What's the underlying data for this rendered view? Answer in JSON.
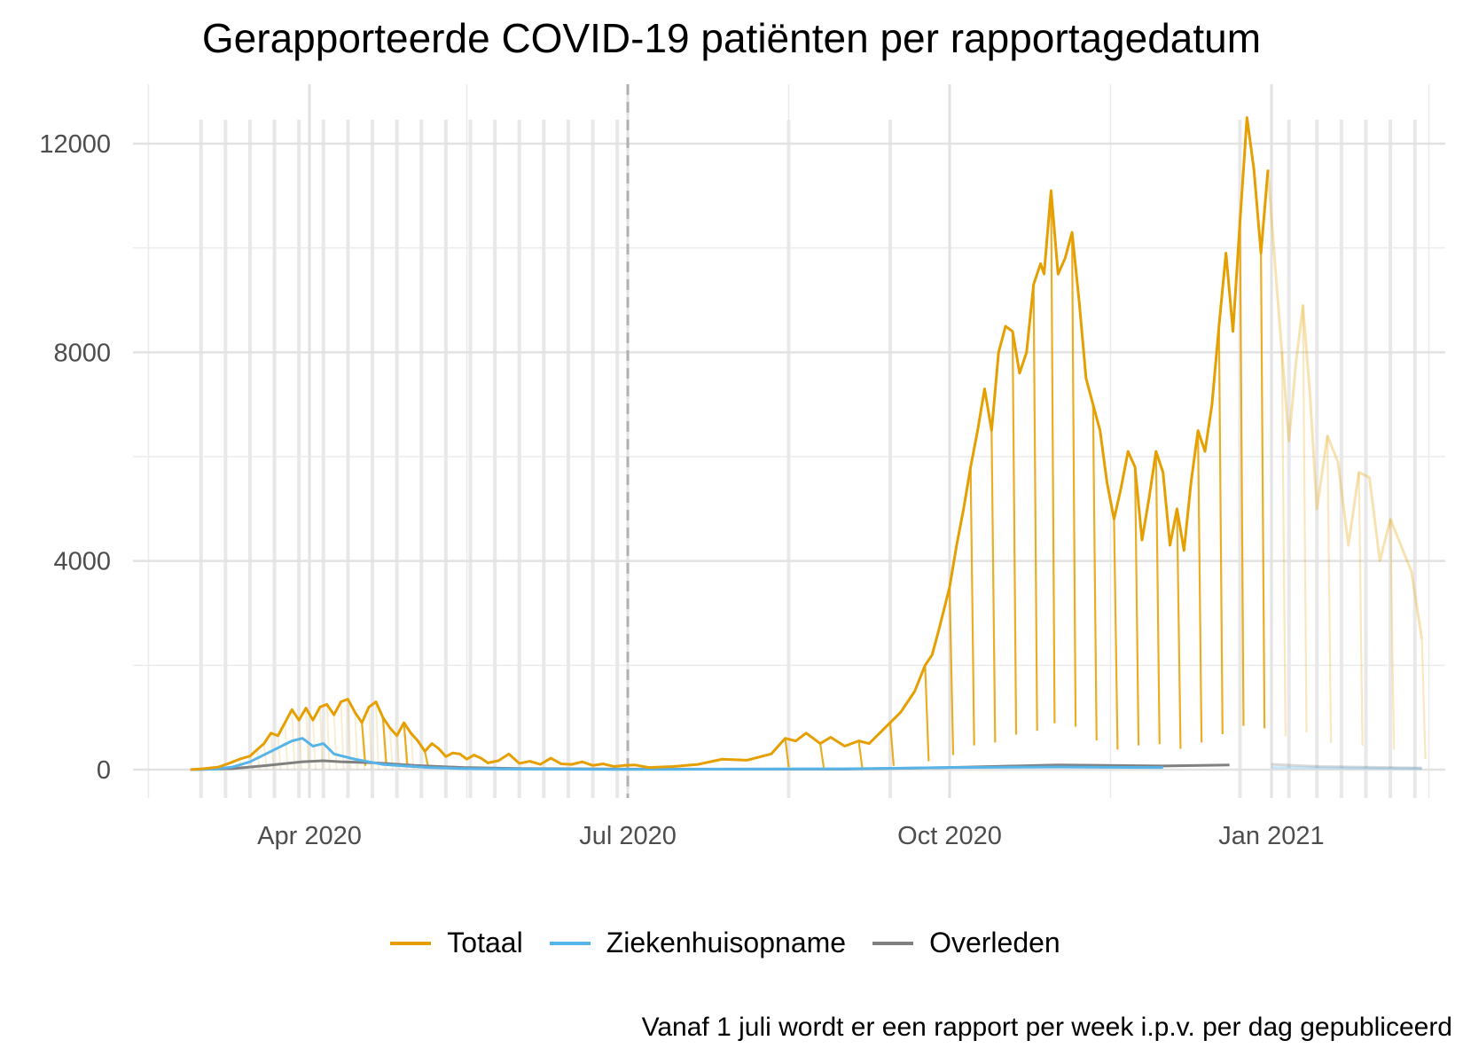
{
  "chart_data": {
    "type": "line",
    "title": "Gerapporteerde COVID-19 patiënten per rapportagedatum",
    "xlabel": "",
    "ylabel": "",
    "caption": "Vanaf 1 juli wordt er een rapport per week i.p.v. per dag gepubliceerd",
    "x_range": [
      "2020-02-14",
      "2021-02-22"
    ],
    "ylim": [
      -1000,
      13000
    ],
    "x_ticks": [
      {
        "date": "2020-04-01",
        "label": "Apr 2020"
      },
      {
        "date": "2020-07-01",
        "label": "Jul 2020"
      },
      {
        "date": "2020-10-01",
        "label": "Oct 2020"
      },
      {
        "date": "2021-01-01",
        "label": "Jan 2021"
      }
    ],
    "y_ticks": [
      {
        "value": 0,
        "label": "0"
      },
      {
        "value": 4000,
        "label": "4000"
      },
      {
        "value": 8000,
        "label": "8000"
      },
      {
        "value": 12000,
        "label": "12000"
      }
    ],
    "grid": true,
    "legend_position": "bottom",
    "vline": {
      "date": "2020-07-01",
      "style": "dashed",
      "color": "#b0b0b0"
    },
    "weekly_gridlines": [
      "2020-03-01",
      "2020-03-08",
      "2020-03-15",
      "2020-03-22",
      "2020-03-29",
      "2020-04-05",
      "2020-04-12",
      "2020-04-19",
      "2020-04-26",
      "2020-05-03",
      "2020-05-10",
      "2020-05-17",
      "2020-05-24",
      "2020-05-31",
      "2020-06-07",
      "2020-06-14",
      "2020-06-21",
      "2020-06-28",
      "2020-08-16",
      "2020-09-14",
      "2020-12-23",
      "2021-01-06",
      "2021-01-14",
      "2021-01-21",
      "2021-01-28",
      "2021-02-04",
      "2021-02-11"
    ],
    "series": [
      {
        "name": "Totaal",
        "color": "#E69F00",
        "points": [
          [
            "2020-02-27",
            0
          ],
          [
            "2020-03-02",
            20
          ],
          [
            "2020-03-06",
            50
          ],
          [
            "2020-03-09",
            120
          ],
          [
            "2020-03-12",
            200
          ],
          [
            "2020-03-15",
            260
          ],
          [
            "2020-03-17",
            380
          ],
          [
            "2020-03-19",
            500
          ],
          [
            "2020-03-21",
            700
          ],
          [
            "2020-03-23",
            650
          ],
          [
            "2020-03-25",
            900
          ],
          [
            "2020-03-27",
            1150
          ],
          [
            "2020-03-29",
            950
          ],
          [
            "2020-03-31",
            1180
          ],
          [
            "2020-04-02",
            950
          ],
          [
            "2020-04-04",
            1200
          ],
          [
            "2020-04-06",
            1250
          ],
          [
            "2020-04-08",
            1050
          ],
          [
            "2020-04-10",
            1300
          ],
          [
            "2020-04-12",
            1350
          ],
          [
            "2020-04-14",
            1100
          ],
          [
            "2020-04-16",
            900
          ],
          [
            "2020-04-18",
            1200
          ],
          [
            "2020-04-20",
            1300
          ],
          [
            "2020-04-22",
            1000
          ],
          [
            "2020-04-24",
            800
          ],
          [
            "2020-04-26",
            650
          ],
          [
            "2020-04-28",
            900
          ],
          [
            "2020-04-30",
            700
          ],
          [
            "2020-05-02",
            550
          ],
          [
            "2020-05-04",
            350
          ],
          [
            "2020-05-06",
            500
          ],
          [
            "2020-05-08",
            400
          ],
          [
            "2020-05-10",
            250
          ],
          [
            "2020-05-12",
            320
          ],
          [
            "2020-05-14",
            300
          ],
          [
            "2020-05-16",
            200
          ],
          [
            "2020-05-18",
            280
          ],
          [
            "2020-05-20",
            220
          ],
          [
            "2020-05-22",
            130
          ],
          [
            "2020-05-25",
            170
          ],
          [
            "2020-05-28",
            300
          ],
          [
            "2020-05-31",
            120
          ],
          [
            "2020-06-03",
            160
          ],
          [
            "2020-06-06",
            100
          ],
          [
            "2020-06-09",
            220
          ],
          [
            "2020-06-12",
            110
          ],
          [
            "2020-06-15",
            100
          ],
          [
            "2020-06-18",
            150
          ],
          [
            "2020-06-21",
            80
          ],
          [
            "2020-06-24",
            110
          ],
          [
            "2020-06-27",
            60
          ],
          [
            "2020-06-30",
            80
          ],
          [
            "2020-07-03",
            90
          ],
          [
            "2020-07-07",
            40
          ],
          [
            "2020-07-14",
            60
          ],
          [
            "2020-07-21",
            100
          ],
          [
            "2020-07-28",
            200
          ],
          [
            "2020-08-04",
            180
          ],
          [
            "2020-08-11",
            300
          ],
          [
            "2020-08-15",
            600
          ],
          [
            "2020-08-18",
            550
          ],
          [
            "2020-08-21",
            700
          ],
          [
            "2020-08-25",
            500
          ],
          [
            "2020-08-28",
            620
          ],
          [
            "2020-09-01",
            450
          ],
          [
            "2020-09-05",
            550
          ],
          [
            "2020-09-08",
            500
          ],
          [
            "2020-09-11",
            700
          ],
          [
            "2020-09-14",
            900
          ],
          [
            "2020-09-17",
            1100
          ],
          [
            "2020-09-21",
            1500
          ],
          [
            "2020-09-24",
            2000
          ],
          [
            "2020-09-26",
            2200
          ],
          [
            "2020-09-28",
            2700
          ],
          [
            "2020-10-01",
            3500
          ],
          [
            "2020-10-03",
            4300
          ],
          [
            "2020-10-05",
            5000
          ],
          [
            "2020-10-07",
            5800
          ],
          [
            "2020-10-09",
            6500
          ],
          [
            "2020-10-11",
            7300
          ],
          [
            "2020-10-13",
            6500
          ],
          [
            "2020-10-15",
            8000
          ],
          [
            "2020-10-17",
            8500
          ],
          [
            "2020-10-19",
            8400
          ],
          [
            "2020-10-21",
            7600
          ],
          [
            "2020-10-23",
            8000
          ],
          [
            "2020-10-25",
            9300
          ],
          [
            "2020-10-27",
            9700
          ],
          [
            "2020-10-28",
            9500
          ],
          [
            "2020-10-30",
            11100
          ],
          [
            "2020-11-01",
            9500
          ],
          [
            "2020-11-03",
            9800
          ],
          [
            "2020-11-05",
            10300
          ],
          [
            "2020-11-07",
            9000
          ],
          [
            "2020-11-09",
            7500
          ],
          [
            "2020-11-11",
            7000
          ],
          [
            "2020-11-13",
            6500
          ],
          [
            "2020-11-15",
            5500
          ],
          [
            "2020-11-17",
            4800
          ],
          [
            "2020-11-19",
            5400
          ],
          [
            "2020-11-21",
            6100
          ],
          [
            "2020-11-23",
            5800
          ],
          [
            "2020-11-25",
            4400
          ],
          [
            "2020-11-27",
            5200
          ],
          [
            "2020-11-29",
            6100
          ],
          [
            "2020-12-01",
            5700
          ],
          [
            "2020-12-03",
            4300
          ],
          [
            "2020-12-05",
            5000
          ],
          [
            "2020-12-07",
            4200
          ],
          [
            "2020-12-09",
            5500
          ],
          [
            "2020-12-11",
            6500
          ],
          [
            "2020-12-13",
            6100
          ],
          [
            "2020-12-15",
            7000
          ],
          [
            "2020-12-17",
            8500
          ],
          [
            "2020-12-19",
            9900
          ],
          [
            "2020-12-21",
            8400
          ],
          [
            "2020-12-23",
            10500
          ],
          [
            "2020-12-25",
            12500
          ],
          [
            "2020-12-27",
            11500
          ],
          [
            "2020-12-29",
            9900
          ],
          [
            "2020-12-31",
            11500
          ],
          [
            "2021-01-02",
            9700
          ],
          [
            "2021-01-04",
            8000
          ],
          [
            "2021-01-06",
            6300
          ],
          [
            "2021-01-08",
            7800
          ],
          [
            "2021-01-10",
            8900
          ],
          [
            "2021-01-12",
            7200
          ],
          [
            "2021-01-14",
            5000
          ],
          [
            "2021-01-17",
            6400
          ],
          [
            "2021-01-20",
            5900
          ],
          [
            "2021-01-23",
            4300
          ],
          [
            "2021-01-26",
            5700
          ],
          [
            "2021-01-29",
            5600
          ],
          [
            "2021-02-01",
            4000
          ],
          [
            "2021-02-04",
            4800
          ],
          [
            "2021-02-07",
            4300
          ],
          [
            "2021-02-10",
            3800
          ],
          [
            "2021-02-13",
            2500
          ]
        ]
      },
      {
        "name": "Ziekenhuisopname",
        "color": "#56B4E9",
        "points": [
          [
            "2020-02-27",
            0
          ],
          [
            "2020-03-05",
            10
          ],
          [
            "2020-03-10",
            50
          ],
          [
            "2020-03-15",
            150
          ],
          [
            "2020-03-18",
            250
          ],
          [
            "2020-03-21",
            350
          ],
          [
            "2020-03-24",
            450
          ],
          [
            "2020-03-27",
            550
          ],
          [
            "2020-03-30",
            600
          ],
          [
            "2020-04-02",
            450
          ],
          [
            "2020-04-05",
            500
          ],
          [
            "2020-04-08",
            300
          ],
          [
            "2020-04-11",
            250
          ],
          [
            "2020-04-14",
            200
          ],
          [
            "2020-04-18",
            150
          ],
          [
            "2020-04-22",
            100
          ],
          [
            "2020-04-28",
            70
          ],
          [
            "2020-05-05",
            40
          ],
          [
            "2020-05-15",
            20
          ],
          [
            "2020-06-01",
            10
          ],
          [
            "2020-07-01",
            5
          ],
          [
            "2020-09-01",
            15
          ],
          [
            "2020-10-01",
            40
          ],
          [
            "2020-11-01",
            50
          ],
          [
            "2020-12-01",
            40
          ],
          [
            "2021-01-01",
            40
          ],
          [
            "2021-02-13",
            20
          ]
        ]
      },
      {
        "name": "Overleden",
        "color": "#808080",
        "points": [
          [
            "2020-02-27",
            0
          ],
          [
            "2020-03-10",
            20
          ],
          [
            "2020-03-20",
            80
          ],
          [
            "2020-03-30",
            150
          ],
          [
            "2020-04-05",
            170
          ],
          [
            "2020-04-10",
            150
          ],
          [
            "2020-04-20",
            130
          ],
          [
            "2020-05-01",
            80
          ],
          [
            "2020-05-15",
            40
          ],
          [
            "2020-06-01",
            20
          ],
          [
            "2020-07-01",
            10
          ],
          [
            "2020-09-01",
            10
          ],
          [
            "2020-10-01",
            40
          ],
          [
            "2020-10-20",
            70
          ],
          [
            "2020-11-01",
            90
          ],
          [
            "2020-11-15",
            80
          ],
          [
            "2020-12-01",
            70
          ],
          [
            "2020-12-20",
            90
          ],
          [
            "2021-01-01",
            100
          ],
          [
            "2021-01-15",
            60
          ],
          [
            "2021-02-13",
            30
          ]
        ]
      }
    ],
    "faded_after": "2020-12-31"
  }
}
